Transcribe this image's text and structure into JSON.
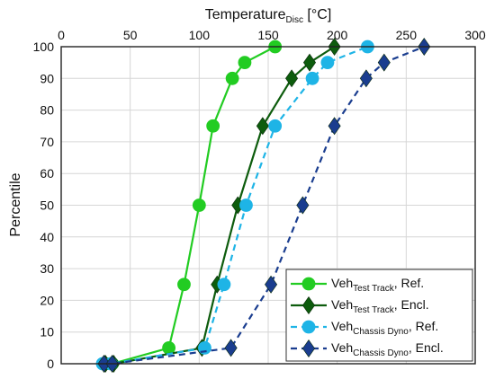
{
  "chart_data": {
    "type": "line",
    "xlabel": "Temperature",
    "xlabel_sub": "Disc",
    "xlabel_unit": " [°C]",
    "ylabel": "Percentile",
    "xlim": [
      0,
      300
    ],
    "ylim": [
      0,
      100
    ],
    "x_ticks": [
      0,
      50,
      100,
      150,
      200,
      250,
      300
    ],
    "y_ticks": [
      0,
      10,
      20,
      30,
      40,
      50,
      60,
      70,
      80,
      90,
      100
    ],
    "grid": true,
    "x_axis_position": "top",
    "legend_position": "bottom-right",
    "series": [
      {
        "name": "Veh",
        "name_sub": "Test Track",
        "name_suffix": ", Ref.",
        "color": "#22cc22",
        "line": "solid",
        "marker": "circle",
        "x": [
          32,
          37,
          78,
          89,
          100,
          110,
          124,
          133,
          155
        ],
        "y": [
          0,
          0,
          5,
          25,
          50,
          75,
          90,
          95,
          100
        ]
      },
      {
        "name": "Veh",
        "name_sub": "Test Track",
        "name_suffix": ", Encl.",
        "color": "#0d5c0d",
        "line": "solid",
        "marker": "diamond",
        "x": [
          32,
          38,
          102,
          113,
          128,
          146,
          167,
          180,
          198
        ],
        "y": [
          0,
          0,
          5,
          25,
          50,
          75,
          90,
          95,
          100
        ]
      },
      {
        "name": "Veh",
        "name_sub": "Chassis Dyno",
        "name_suffix": ", Ref.",
        "color": "#1eb4e6",
        "line": "dashed",
        "marker": "circle",
        "x": [
          30,
          36,
          104,
          118,
          134,
          155,
          182,
          193,
          222
        ],
        "y": [
          0,
          0,
          5,
          25,
          50,
          75,
          90,
          95,
          100
        ]
      },
      {
        "name": "Veh",
        "name_sub": "Chassis Dyno",
        "name_suffix": ", Encl.",
        "color": "#1a3d8f",
        "line": "dashed",
        "marker": "diamond",
        "x": [
          31,
          37,
          123,
          152,
          175,
          198,
          221,
          234,
          263
        ],
        "y": [
          0,
          0,
          5,
          25,
          50,
          75,
          90,
          95,
          100
        ]
      }
    ]
  }
}
